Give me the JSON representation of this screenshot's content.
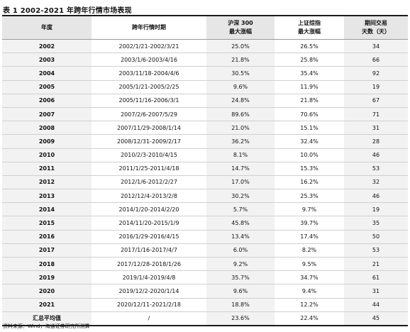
{
  "title": "表 1 2002-2021 年跨年行情市场表现",
  "table": {
    "headers": {
      "year": "年度",
      "period": "跨年行情时期",
      "hs300_line1": "沪深 300",
      "hs300_line2": "最大涨幅",
      "sh_line1": "上证综指",
      "sh_line2": "最大涨幅",
      "days_line1": "期间交易",
      "days_line2": "天数（天）"
    },
    "rows": [
      {
        "year": "2002",
        "period": "2002/1/21-2002/3/21",
        "hs300": "25.0%",
        "sh": "26.5%",
        "days": "34"
      },
      {
        "year": "2003",
        "period": "2003/1/6-2003/4/16",
        "hs300": "21.8%",
        "sh": "25.8%",
        "days": "66"
      },
      {
        "year": "2004",
        "period": "2003/11/18-2004/4/6",
        "hs300": "30.5%",
        "sh": "35.4%",
        "days": "92"
      },
      {
        "year": "2005",
        "period": "2005/1/21-2005/2/25",
        "hs300": "9.6%",
        "sh": "11.9%",
        "days": "19"
      },
      {
        "year": "2006",
        "period": "2005/11/16-2006/3/1",
        "hs300": "24.8%",
        "sh": "21.8%",
        "days": "67"
      },
      {
        "year": "2007",
        "period": "2007/2/6-2007/5/29",
        "hs300": "89.6%",
        "sh": "70.6%",
        "days": "71"
      },
      {
        "year": "2008",
        "period": "2007/11/29-2008/1/14",
        "hs300": "21.0%",
        "sh": "15.1%",
        "days": "31"
      },
      {
        "year": "2009",
        "period": "2008/12/31-2009/2/17",
        "hs300": "36.2%",
        "sh": "32.4%",
        "days": "28"
      },
      {
        "year": "2010",
        "period": "2010/2/3-2010/4/15",
        "hs300": "8.1%",
        "sh": "10.0%",
        "days": "46"
      },
      {
        "year": "2011",
        "period": "2011/1/25-2011/4/18",
        "hs300": "14.7%",
        "sh": "15.3%",
        "days": "53"
      },
      {
        "year": "2012",
        "period": "2012/1/6-2012/2/27",
        "hs300": "17.0%",
        "sh": "16.2%",
        "days": "32"
      },
      {
        "year": "2013",
        "period": "2012/12/4-2013/2/8",
        "hs300": "30.2%",
        "sh": "25.3%",
        "days": "46"
      },
      {
        "year": "2014",
        "period": "2014/1/20-2014/2/20",
        "hs300": "5.7%",
        "sh": "9.7%",
        "days": "19"
      },
      {
        "year": "2015",
        "period": "2014/11/20-2015/1/9",
        "hs300": "45.8%",
        "sh": "39.7%",
        "days": "35"
      },
      {
        "year": "2016",
        "period": "2016/1/29-2016/4/15",
        "hs300": "13.4%",
        "sh": "17.4%",
        "days": "50"
      },
      {
        "year": "2017",
        "period": "2017/1/16-2017/4/7",
        "hs300": "6.0%",
        "sh": "8.2%",
        "days": "53"
      },
      {
        "year": "2018",
        "period": "2017/12/28-2018/1/26",
        "hs300": "9.2%",
        "sh": "9.5%",
        "days": "21"
      },
      {
        "year": "2019",
        "period": "2019/1/4-2019/4/8",
        "hs300": "35.7%",
        "sh": "34.7%",
        "days": "61"
      },
      {
        "year": "2020",
        "period": "2019/12/2-2020/1/14",
        "hs300": "9.6%",
        "sh": "9.4%",
        "days": "31"
      },
      {
        "year": "2021",
        "period": "2020/12/11-2021/2/18",
        "hs300": "18.8%",
        "sh": "12.2%",
        "days": "44"
      }
    ],
    "summary": {
      "label": "汇总平均值",
      "period": "/",
      "hs300": "23.6%",
      "sh": "22.4%",
      "days": "45"
    }
  },
  "source": "资料来源：Wind，海通证券研究所测算"
}
